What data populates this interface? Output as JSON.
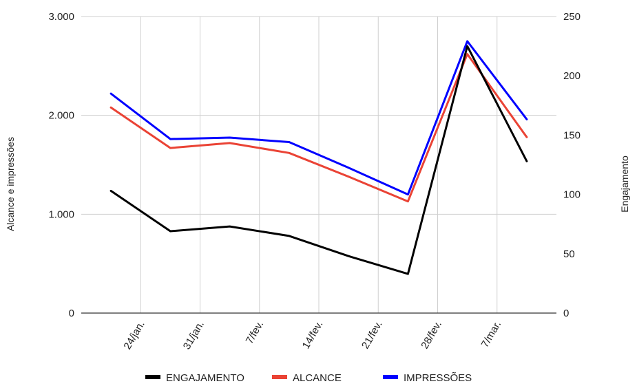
{
  "chart_data": {
    "type": "line",
    "x": [
      "2025-01-20",
      "2025-01-27",
      "2025-02-03",
      "2025-02-10",
      "2025-02-17",
      "2025-02-24",
      "2025-03-03",
      "2025-03-10"
    ],
    "x_tick_labels": [
      "24/jan.",
      "31/jan.",
      "7/fev.",
      "14/fev.",
      "21/fev.",
      "28/fev.",
      "7/mar."
    ],
    "series": [
      {
        "name": "ENGAJAMENTO",
        "axis": "right",
        "color": "#000000",
        "values": [
          103,
          69,
          73,
          65,
          48,
          33,
          225,
          128
        ]
      },
      {
        "name": "ALCANCE",
        "axis": "left",
        "color": "#ea4335",
        "values": [
          2080,
          1670,
          1720,
          1620,
          1380,
          1130,
          2620,
          1780
        ]
      },
      {
        "name": "IMPRESSÕES",
        "axis": "left",
        "color": "#0000ff",
        "values": [
          2220,
          1760,
          1775,
          1730,
          1470,
          1200,
          2750,
          1960
        ]
      }
    ],
    "y_left": {
      "label": "Alcance e impressões",
      "ylim": [
        0,
        3000
      ],
      "ticks": [
        0,
        1000,
        2000,
        3000
      ],
      "tick_labels": [
        "0",
        "1.000",
        "2.000",
        "3.000"
      ]
    },
    "y_right": {
      "label": "Engajamento",
      "ylim": [
        0,
        250
      ],
      "ticks": [
        0,
        50,
        100,
        150,
        200,
        250
      ],
      "tick_labels": [
        "0",
        "50",
        "100",
        "150",
        "200",
        "250"
      ]
    },
    "grid": true,
    "legend_position": "bottom"
  }
}
